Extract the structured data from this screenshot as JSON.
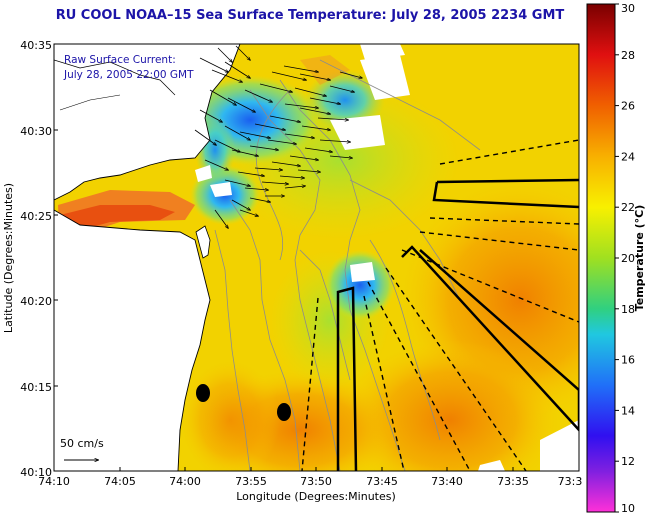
{
  "title": "RU COOL  NOAA–15  Sea Surface Temperature:  July 28, 2005 2234 GMT",
  "overlay": {
    "line1": "Raw Surface Current:",
    "line2": "July 28, 2005 22:00 GMT",
    "scale_label": "50 cm/s"
  },
  "axes": {
    "xlabel": "Longitude (Degrees:Minutes)",
    "ylabel": "Latitude (Degrees:Minutes)",
    "x_ticks": [
      "74:10",
      "74:05",
      "74:00",
      "73:55",
      "73:50",
      "73:45",
      "73:40",
      "73:35",
      "73:3"
    ],
    "y_ticks": [
      "40:35",
      "40:30",
      "40:25",
      "40:20",
      "40:15",
      "40:10"
    ]
  },
  "colorbar": {
    "label": "Temperature (°C)",
    "ticks": [
      "30",
      "28",
      "26",
      "24",
      "22",
      "20",
      "18",
      "16",
      "14",
      "12",
      "10"
    ],
    "min": 10,
    "max": 30
  },
  "map": {
    "lon_range": [
      "74:10",
      "73:30"
    ],
    "lat_range": [
      "40:10",
      "40:35"
    ],
    "land_color": "#ffffff",
    "ocean_base_color": "#f0d400",
    "warm_color": "#f08000",
    "cool_color": "#28b4f0",
    "features": [
      "sst-field",
      "coastline",
      "bathymetry-contours",
      "current-vectors",
      "sampling-transects",
      "station-markers",
      "cloud-gaps"
    ]
  }
}
